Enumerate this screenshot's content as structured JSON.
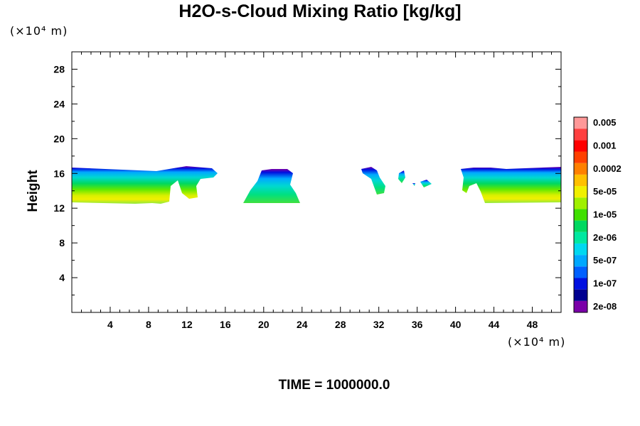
{
  "chart_data": {
    "type": "heatmap",
    "title": "H2O-s-Cloud Mixing Ratio [kg/kg]",
    "ylabel": "Height",
    "y_unit": "(×10⁴ m)",
    "x_unit": "(×10⁴ m)",
    "xlim": [
      0,
      51
    ],
    "ylim": [
      0,
      30
    ],
    "x_ticks": [
      "4",
      "8",
      "12",
      "16",
      "20",
      "24",
      "28",
      "32",
      "36",
      "40",
      "44",
      "48"
    ],
    "y_ticks": [
      "4",
      "8",
      "12",
      "16",
      "20",
      "24",
      "28"
    ],
    "colorbar": {
      "labels": [
        "2e-08",
        "1e-07",
        "5e-07",
        "2e-06",
        "1e-05",
        "5e-05",
        "0.0002",
        "0.001",
        "0.005"
      ],
      "colors": [
        "#7a00a8",
        "#000090",
        "#0010e0",
        "#0060ff",
        "#00a8ff",
        "#00d8f0",
        "#00e8a0",
        "#00d860",
        "#40e000",
        "#a0f000",
        "#f0f000",
        "#ffc000",
        "#ff8000",
        "#ff4000",
        "#ff0000",
        "#ff4040",
        "#ff9898"
      ]
    },
    "cloud_regions": [
      {
        "x_range": [
          0,
          15.3
        ],
        "y_range": [
          12.6,
          16.6
        ]
      },
      {
        "x_range": [
          18,
          24
        ],
        "y_range": [
          12.6,
          16.4
        ]
      },
      {
        "x_range": [
          30.2,
          37.8
        ],
        "y_range": [
          13.5,
          16.6
        ]
      },
      {
        "x_range": [
          40.5,
          51
        ],
        "y_range": [
          12.6,
          16.6
        ]
      }
    ],
    "time_label": "TIME = 1000000.0"
  }
}
